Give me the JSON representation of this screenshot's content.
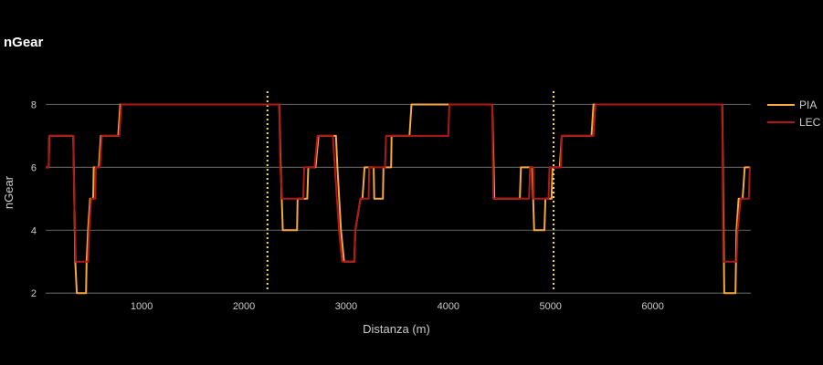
{
  "chart_data": {
    "type": "line",
    "title": "nGear",
    "xlabel": "Distanza (m)",
    "ylabel": "nGear",
    "xlim": [
      60,
      6960
    ],
    "ylim": [
      1.6,
      9.0
    ],
    "x_ticks": [
      1000,
      2000,
      3000,
      4000,
      5000,
      6000
    ],
    "y_ticks": [
      2,
      4,
      6,
      8
    ],
    "grid": "horizontal",
    "legend_position": "right",
    "vlines": {
      "x": [
        2230,
        5030
      ],
      "color": "#f2e36a",
      "style": "dotted"
    },
    "series": [
      {
        "name": "PIA",
        "color": "#f5a742",
        "points": [
          [
            60,
            6
          ],
          [
            90,
            6
          ],
          [
            95,
            7
          ],
          [
            330,
            7
          ],
          [
            335,
            6
          ],
          [
            350,
            3
          ],
          [
            365,
            2
          ],
          [
            455,
            2
          ],
          [
            460,
            3
          ],
          [
            475,
            4
          ],
          [
            495,
            5
          ],
          [
            525,
            5
          ],
          [
            530,
            6
          ],
          [
            580,
            6
          ],
          [
            600,
            7
          ],
          [
            770,
            7
          ],
          [
            790,
            8
          ],
          [
            2345,
            8
          ],
          [
            2360,
            6
          ],
          [
            2380,
            4
          ],
          [
            2520,
            4
          ],
          [
            2525,
            5
          ],
          [
            2620,
            5
          ],
          [
            2630,
            6
          ],
          [
            2700,
            6
          ],
          [
            2730,
            7
          ],
          [
            2900,
            7
          ],
          [
            2915,
            6
          ],
          [
            2950,
            4
          ],
          [
            2980,
            3
          ],
          [
            3080,
            3
          ],
          [
            3090,
            4
          ],
          [
            3140,
            5
          ],
          [
            3160,
            5
          ],
          [
            3180,
            6
          ],
          [
            3270,
            6
          ],
          [
            3275,
            5
          ],
          [
            3360,
            5
          ],
          [
            3365,
            6
          ],
          [
            3440,
            6
          ],
          [
            3445,
            7
          ],
          [
            3620,
            7
          ],
          [
            3640,
            8
          ],
          [
            4430,
            8
          ],
          [
            4450,
            5
          ],
          [
            4700,
            5
          ],
          [
            4710,
            6
          ],
          [
            4820,
            6
          ],
          [
            4840,
            4
          ],
          [
            4940,
            4
          ],
          [
            4950,
            5
          ],
          [
            5010,
            5
          ],
          [
            5020,
            6
          ],
          [
            5080,
            6
          ],
          [
            5090,
            6
          ],
          [
            5110,
            7
          ],
          [
            5400,
            7
          ],
          [
            5420,
            8
          ],
          [
            6680,
            8
          ],
          [
            6700,
            2
          ],
          [
            6810,
            2
          ],
          [
            6820,
            4
          ],
          [
            6840,
            5
          ],
          [
            6880,
            5
          ],
          [
            6900,
            6
          ],
          [
            6950,
            6
          ]
        ]
      },
      {
        "name": "LEC",
        "color": "#b01818",
        "points": [
          [
            60,
            6
          ],
          [
            90,
            6
          ],
          [
            95,
            7
          ],
          [
            330,
            7
          ],
          [
            340,
            5
          ],
          [
            355,
            3
          ],
          [
            475,
            3
          ],
          [
            485,
            4
          ],
          [
            505,
            5
          ],
          [
            545,
            5
          ],
          [
            550,
            6
          ],
          [
            590,
            6
          ],
          [
            610,
            7
          ],
          [
            780,
            7
          ],
          [
            800,
            8
          ],
          [
            2345,
            8
          ],
          [
            2355,
            6
          ],
          [
            2375,
            5
          ],
          [
            2580,
            5
          ],
          [
            2590,
            6
          ],
          [
            2690,
            6
          ],
          [
            2720,
            7
          ],
          [
            2870,
            7
          ],
          [
            2890,
            6
          ],
          [
            2930,
            4
          ],
          [
            2960,
            3
          ],
          [
            3080,
            3
          ],
          [
            3090,
            4
          ],
          [
            3140,
            5
          ],
          [
            3220,
            5
          ],
          [
            3225,
            6
          ],
          [
            3380,
            6
          ],
          [
            3390,
            7
          ],
          [
            4000,
            7
          ],
          [
            4010,
            8
          ],
          [
            4430,
            8
          ],
          [
            4440,
            5
          ],
          [
            4790,
            5
          ],
          [
            4800,
            6
          ],
          [
            4830,
            6
          ],
          [
            4835,
            5
          ],
          [
            4980,
            5
          ],
          [
            4990,
            6
          ],
          [
            5100,
            6
          ],
          [
            5110,
            7
          ],
          [
            5420,
            7
          ],
          [
            5440,
            8
          ],
          [
            6680,
            8
          ],
          [
            6690,
            3
          ],
          [
            6820,
            3
          ],
          [
            6830,
            4
          ],
          [
            6860,
            5
          ],
          [
            6940,
            5
          ],
          [
            6950,
            6
          ]
        ]
      }
    ]
  }
}
